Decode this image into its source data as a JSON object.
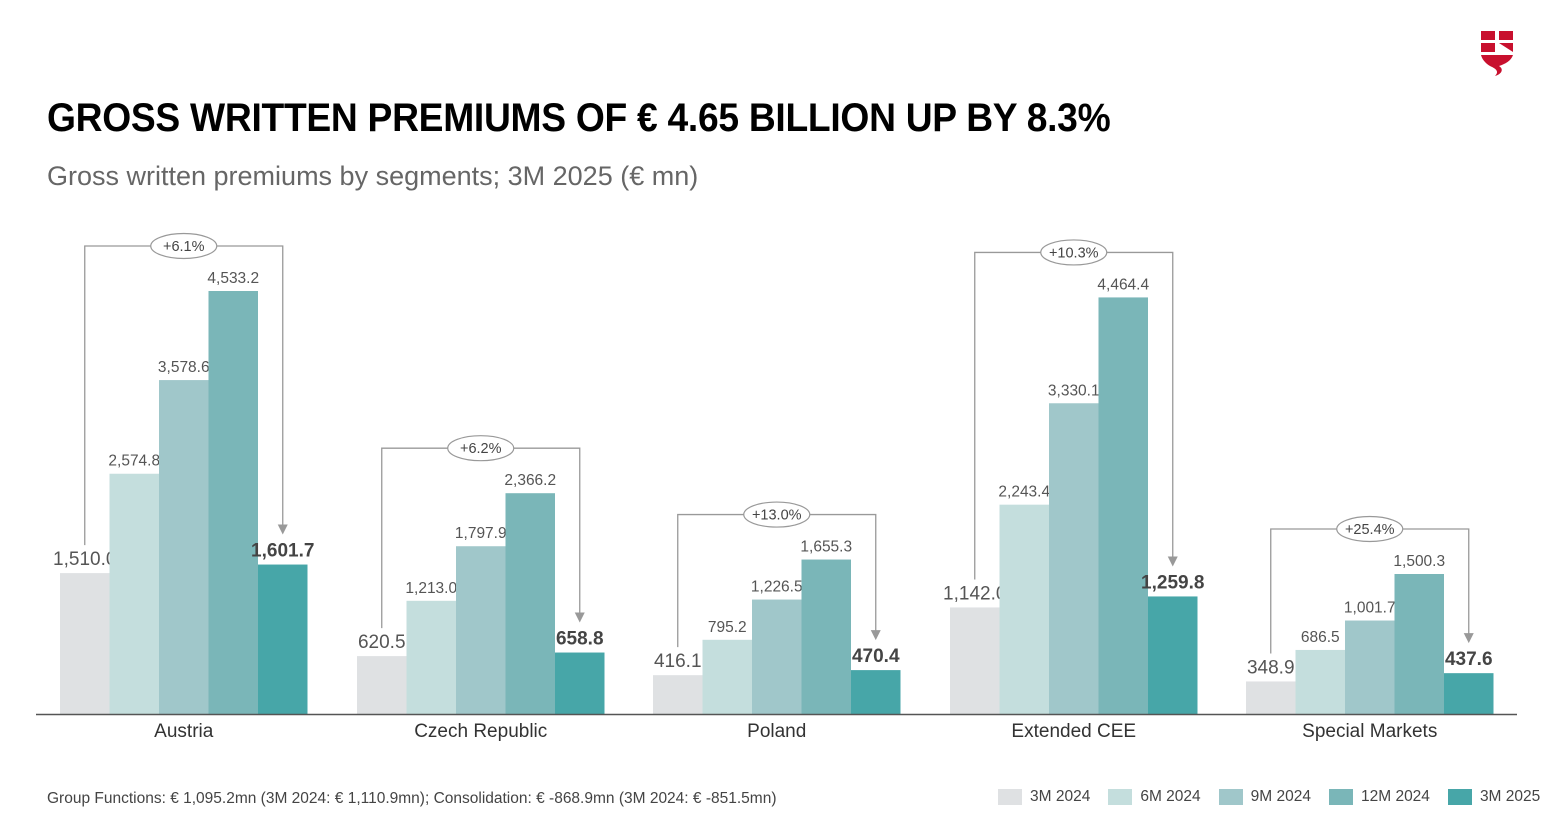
{
  "title": "GROSS WRITTEN PREMIUMS OF € 4.65 BILLION UP BY 8.3%",
  "subtitle": "Gross written premiums by segments; 3M 2025 (€ mn)",
  "footnote": "Group Functions: € 1,095.2mn (3M 2024: € 1,110.9mn); Consolidation: € -868.9mn (3M 2024: € -851.5mn)",
  "logo_icon": "shield-logo-icon",
  "colors": {
    "3M 2024": "#dfe1e3",
    "6M 2024": "#c4dedd",
    "9M 2024": "#a0c7ca",
    "12M 2024": "#7ab6b8",
    "3M 2025": "#47a6a8",
    "brand": "#c8102e"
  },
  "chart_data": {
    "type": "bar",
    "categories": [
      "Austria",
      "Czech Republic",
      "Poland",
      "Extended CEE",
      "Special Markets"
    ],
    "series": [
      {
        "name": "3M 2024",
        "values": [
          1510.0,
          620.5,
          416.1,
          1142.0,
          348.9
        ],
        "labels": [
          "1,510.0",
          "620.5",
          "416.1",
          "1,142.0",
          "348.9"
        ]
      },
      {
        "name": "6M 2024",
        "values": [
          2574.8,
          1213.0,
          795.2,
          2243.4,
          686.5
        ],
        "labels": [
          "2,574.8",
          "1,213.0",
          "795.2",
          "2,243.4",
          "686.5"
        ]
      },
      {
        "name": "9M 2024",
        "values": [
          3578.6,
          1797.9,
          1226.5,
          3330.1,
          1001.7
        ],
        "labels": [
          "3,578.6",
          "1,797.9",
          "1,226.5",
          "3,330.1",
          "1,001.7"
        ]
      },
      {
        "name": "12M 2024",
        "values": [
          4533.2,
          2366.2,
          1655.3,
          4464.4,
          1500.3
        ],
        "labels": [
          "4,533.2",
          "2,366.2",
          "1,655.3",
          "4,464.4",
          "1,500.3"
        ]
      },
      {
        "name": "3M 2025",
        "values": [
          1601.7,
          658.8,
          470.4,
          1259.8,
          437.6
        ],
        "labels": [
          "1,601.7",
          "658.8",
          "470.4",
          "1,259.8",
          "437.6"
        ]
      }
    ],
    "growth": [
      "+6.1%",
      "+6.2%",
      "+13.0%",
      "+10.3%",
      "+25.4%"
    ],
    "ylim": [
      0,
      4533.2
    ],
    "grid": false,
    "legend_position": "bottom-right"
  }
}
